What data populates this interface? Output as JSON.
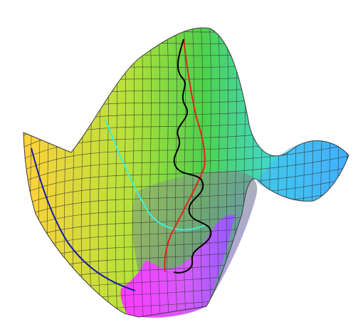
{
  "figure": {
    "kind": "3d-surface-render",
    "background": "#ffffff",
    "surface": {
      "colormap": [
        "#ffd23a",
        "#a6e23b",
        "#4fd24a",
        "#3dd9d9",
        "#3aa8ff",
        "#8f5bff",
        "#ff3aff"
      ],
      "mesh_color": "#3a3a3a"
    },
    "paths": [
      {
        "name": "blue-path",
        "color": "#1a1aa8"
      },
      {
        "name": "cyan-path",
        "color": "#3cf0d8"
      },
      {
        "name": "red-path",
        "color": "#e0241b"
      },
      {
        "name": "black-path",
        "color": "#000000"
      }
    ]
  }
}
